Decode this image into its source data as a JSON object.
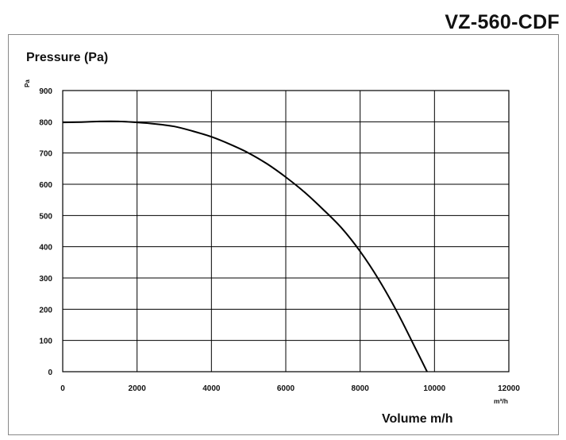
{
  "page": {
    "model_title": "VZ-560-CDF"
  },
  "chart_data": {
    "type": "line",
    "title": "VZ-560-CDF",
    "ylabel": "Pressure (Pa)",
    "y_unit": "Pa",
    "xlabel": "Volume m/h",
    "x_unit": "m³/h",
    "xlim": [
      0,
      12000
    ],
    "ylim": [
      0,
      900
    ],
    "x_ticks": [
      0,
      2000,
      4000,
      6000,
      8000,
      10000,
      12000
    ],
    "y_ticks": [
      0,
      100,
      200,
      300,
      400,
      500,
      600,
      700,
      800,
      900
    ],
    "x_tick_labels": [
      "0",
      "2000",
      "4000",
      "6000",
      "8000",
      "10000",
      "12000"
    ],
    "y_tick_labels": [
      "0",
      "100",
      "200",
      "300",
      "400",
      "500",
      "600",
      "700",
      "800",
      "900"
    ],
    "grid": true,
    "series": [
      {
        "color": "#000000",
        "x": [
          0,
          500,
          1000,
          1500,
          2000,
          2500,
          3000,
          3500,
          4000,
          4500,
          5000,
          5500,
          6000,
          6500,
          7000,
          7500,
          8000,
          8500,
          9000,
          9500,
          9800
        ],
        "y": [
          798,
          799,
          801,
          801,
          798,
          793,
          785,
          770,
          752,
          728,
          700,
          665,
          623,
          575,
          520,
          460,
          385,
          295,
          190,
          72,
          0
        ]
      }
    ]
  }
}
